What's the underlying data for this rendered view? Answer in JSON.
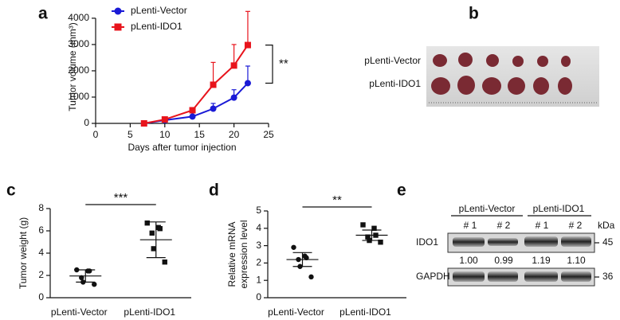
{
  "chart_data": [
    {
      "type": "line",
      "panel_label": "a",
      "ylabel": "Tumor volume (mm³)",
      "xlabel": "Days after tumor injection",
      "x": [
        7,
        10,
        14,
        17,
        20,
        22
      ],
      "series": [
        {
          "name": "pLenti-Vector",
          "color": "#1a1ad6",
          "marker": "circle",
          "values": [
            0,
            120,
            260,
            560,
            980,
            1530
          ],
          "errors": [
            20,
            40,
            60,
            200,
            300,
            650
          ]
        },
        {
          "name": "pLenti-IDO1",
          "color": "#e8141c",
          "marker": "square",
          "values": [
            0,
            150,
            500,
            1470,
            2200,
            2980
          ],
          "errors": [
            20,
            50,
            100,
            850,
            800,
            1280
          ]
        }
      ],
      "xlim": [
        0,
        25
      ],
      "xticks": [
        0,
        5,
        10,
        15,
        20,
        25
      ],
      "ylim": [
        0,
        4300
      ],
      "yticks": [
        0,
        1000,
        2000,
        3000,
        4000
      ],
      "annotation": "**"
    },
    {
      "type": "dot",
      "panel_label": "c",
      "ylabel": "Tumor weight (g)",
      "categories": [
        "pLenti-Vector",
        "pLenti-IDO1"
      ],
      "groups": [
        {
          "marker": "circle",
          "values": [
            2.5,
            2.4,
            2.4,
            1.8,
            1.4,
            1.2
          ],
          "mean": 1.95,
          "sd": 0.55
        },
        {
          "marker": "square",
          "values": [
            6.7,
            6.3,
            6.2,
            5.8,
            4.4,
            3.2
          ],
          "mean": 5.2,
          "sd": 1.6
        }
      ],
      "ylim": [
        0,
        8
      ],
      "yticks": [
        0,
        2,
        4,
        6,
        8
      ],
      "annotation": "***"
    },
    {
      "type": "dot",
      "panel_label": "d",
      "ylabel": [
        "Relative mRNA",
        "expression level"
      ],
      "categories": [
        "pLenti-Vector",
        "pLenti-IDO1"
      ],
      "groups": [
        {
          "marker": "circle",
          "values": [
            2.9,
            2.4,
            2.3,
            2.2,
            1.8,
            1.2
          ],
          "mean": 2.2,
          "sd": 0.4
        },
        {
          "marker": "square",
          "values": [
            4.2,
            4.0,
            3.6,
            3.5,
            3.3,
            3.2
          ],
          "mean": 3.6,
          "sd": 0.3
        }
      ],
      "ylim": [
        0,
        5
      ],
      "yticks": [
        0,
        1,
        2,
        3,
        4,
        5
      ],
      "annotation": "**"
    }
  ],
  "panel_b": {
    "label": "b",
    "rows": [
      "pLenti-Vector",
      "pLenti-IDO1"
    ]
  },
  "panel_e": {
    "label": "e",
    "groups": [
      "pLenti-Vector",
      "pLenti-IDO1"
    ],
    "lanes": [
      "# 1",
      "# 2",
      "# 1",
      "# 2"
    ],
    "unit": "kDa",
    "bands": [
      {
        "name": "IDO1",
        "kda": 45
      },
      {
        "name": "GAPDH",
        "kda": 36
      }
    ],
    "quantification": [
      "1.00",
      "0.99",
      "1.19",
      "1.10"
    ]
  }
}
